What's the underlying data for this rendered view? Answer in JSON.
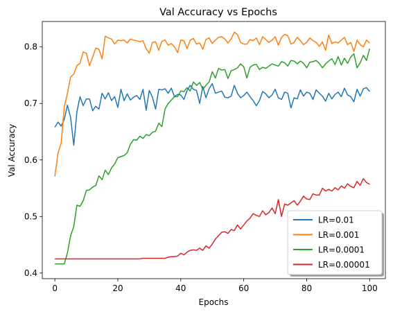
{
  "chart_data": {
    "type": "line",
    "title": "Val Accuracy vs Epochs",
    "xlabel": "Epochs",
    "ylabel": "Val Accuracy",
    "xlim": [
      -4,
      105
    ],
    "ylim": [
      0.39,
      0.845
    ],
    "xticks": [
      0,
      20,
      40,
      60,
      80,
      100
    ],
    "yticks": [
      0.4,
      0.5,
      0.6,
      0.7,
      0.8
    ],
    "ytick_labels": [
      "0.4",
      "0.5",
      "0.6",
      "0.7",
      "0.8"
    ],
    "grid": false,
    "legend_position": "lower-right",
    "series": [
      {
        "name": "LR=0.01",
        "color": "#1f77b4",
        "values": [
          0.658,
          0.667,
          0.66,
          0.672,
          0.697,
          0.675,
          0.626,
          0.685,
          0.712,
          0.696,
          0.708,
          0.708,
          0.687,
          0.695,
          0.69,
          0.718,
          0.708,
          0.719,
          0.705,
          0.712,
          0.693,
          0.725,
          0.705,
          0.717,
          0.706,
          0.711,
          0.714,
          0.707,
          0.725,
          0.688,
          0.723,
          0.711,
          0.69,
          0.725,
          0.724,
          0.726,
          0.718,
          0.727,
          0.712,
          0.716,
          0.715,
          0.707,
          0.723,
          0.732,
          0.725,
          0.723,
          0.7,
          0.73,
          0.71,
          0.726,
          0.735,
          0.718,
          0.72,
          0.722,
          0.711,
          0.71,
          0.713,
          0.732,
          0.718,
          0.71,
          0.714,
          0.72,
          0.712,
          0.705,
          0.696,
          0.705,
          0.721,
          0.717,
          0.71,
          0.715,
          0.725,
          0.71,
          0.707,
          0.72,
          0.718,
          0.692,
          0.71,
          0.708,
          0.724,
          0.713,
          0.72,
          0.718,
          0.707,
          0.724,
          0.718,
          0.713,
          0.704,
          0.718,
          0.708,
          0.716,
          0.72,
          0.712,
          0.727,
          0.715,
          0.712,
          0.703,
          0.725,
          0.713,
          0.726,
          0.728,
          0.721
        ]
      },
      {
        "name": "LR=0.001",
        "color": "#ff7f0e",
        "values": [
          0.571,
          0.612,
          0.63,
          0.694,
          0.718,
          0.747,
          0.752,
          0.767,
          0.771,
          0.791,
          0.789,
          0.767,
          0.782,
          0.798,
          0.796,
          0.779,
          0.819,
          0.816,
          0.814,
          0.805,
          0.812,
          0.811,
          0.812,
          0.807,
          0.814,
          0.812,
          0.811,
          0.809,
          0.811,
          0.797,
          0.789,
          0.808,
          0.809,
          0.794,
          0.81,
          0.812,
          0.803,
          0.806,
          0.8,
          0.79,
          0.812,
          0.811,
          0.797,
          0.812,
          0.815,
          0.805,
          0.807,
          0.796,
          0.813,
          0.816,
          0.806,
          0.812,
          0.817,
          0.818,
          0.814,
          0.807,
          0.814,
          0.826,
          0.822,
          0.808,
          0.805,
          0.805,
          0.813,
          0.811,
          0.816,
          0.804,
          0.818,
          0.813,
          0.808,
          0.812,
          0.818,
          0.803,
          0.817,
          0.822,
          0.82,
          0.805,
          0.808,
          0.817,
          0.811,
          0.804,
          0.808,
          0.816,
          0.811,
          0.808,
          0.801,
          0.809,
          0.794,
          0.821,
          0.806,
          0.809,
          0.807,
          0.812,
          0.817,
          0.804,
          0.808,
          0.792,
          0.812,
          0.804,
          0.8,
          0.812,
          0.807
        ]
      },
      {
        "name": "LR=0.0001",
        "color": "#2ca02c",
        "values": [
          0.416,
          0.416,
          0.416,
          0.416,
          0.436,
          0.466,
          0.482,
          0.52,
          0.518,
          0.528,
          0.546,
          0.547,
          0.552,
          0.555,
          0.572,
          0.565,
          0.582,
          0.574,
          0.586,
          0.593,
          0.604,
          0.606,
          0.608,
          0.613,
          0.628,
          0.636,
          0.635,
          0.642,
          0.638,
          0.645,
          0.643,
          0.649,
          0.651,
          0.665,
          0.659,
          0.69,
          0.7,
          0.706,
          0.712,
          0.712,
          0.722,
          0.721,
          0.728,
          0.722,
          0.738,
          0.732,
          0.737,
          0.725,
          0.732,
          0.738,
          0.756,
          0.745,
          0.762,
          0.759,
          0.76,
          0.744,
          0.758,
          0.76,
          0.763,
          0.77,
          0.765,
          0.745,
          0.764,
          0.768,
          0.769,
          0.76,
          0.764,
          0.762,
          0.766,
          0.77,
          0.768,
          0.766,
          0.774,
          0.772,
          0.766,
          0.776,
          0.775,
          0.77,
          0.775,
          0.771,
          0.763,
          0.773,
          0.774,
          0.776,
          0.771,
          0.763,
          0.77,
          0.775,
          0.779,
          0.769,
          0.783,
          0.768,
          0.78,
          0.771,
          0.782,
          0.788,
          0.763,
          0.772,
          0.785,
          0.776,
          0.797
        ]
      },
      {
        "name": "LR=0.00001",
        "color": "#d62728",
        "values": [
          0.425,
          0.425,
          0.425,
          0.425,
          0.425,
          0.425,
          0.425,
          0.425,
          0.425,
          0.425,
          0.425,
          0.425,
          0.425,
          0.425,
          0.425,
          0.425,
          0.425,
          0.425,
          0.425,
          0.425,
          0.425,
          0.425,
          0.425,
          0.425,
          0.425,
          0.425,
          0.425,
          0.425,
          0.426,
          0.426,
          0.426,
          0.426,
          0.426,
          0.426,
          0.426,
          0.426,
          0.428,
          0.429,
          0.429,
          0.43,
          0.435,
          0.432,
          0.437,
          0.44,
          0.441,
          0.44,
          0.444,
          0.44,
          0.448,
          0.444,
          0.451,
          0.46,
          0.466,
          0.472,
          0.473,
          0.47,
          0.477,
          0.475,
          0.485,
          0.478,
          0.485,
          0.492,
          0.497,
          0.505,
          0.502,
          0.5,
          0.51,
          0.503,
          0.507,
          0.515,
          0.505,
          0.53,
          0.5,
          0.522,
          0.52,
          0.524,
          0.528,
          0.52,
          0.527,
          0.536,
          0.531,
          0.53,
          0.54,
          0.538,
          0.538,
          0.55,
          0.545,
          0.548,
          0.545,
          0.551,
          0.547,
          0.554,
          0.55,
          0.558,
          0.553,
          0.551,
          0.562,
          0.555,
          0.567,
          0.56,
          0.557
        ]
      }
    ]
  }
}
